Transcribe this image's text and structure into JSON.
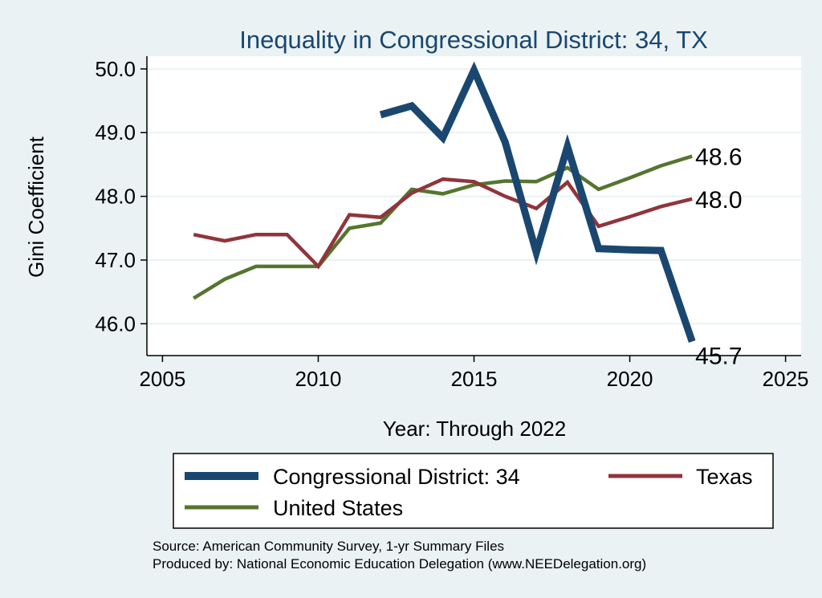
{
  "chart_data": {
    "type": "line",
    "title": "Inequality in Congressional District:  34, TX",
    "xlabel": "Year: Through 2022",
    "ylabel": "Gini Coefficient",
    "xlim": [
      2004.5,
      2025.5
    ],
    "ylim": [
      45.5,
      50.2
    ],
    "x_ticks": [
      2005,
      2010,
      2015,
      2020,
      2025
    ],
    "y_ticks": [
      46.0,
      47.0,
      48.0,
      49.0,
      50.0
    ],
    "y_tick_labels": [
      "46.0",
      "47.0",
      "48.0",
      "49.0",
      "50.0"
    ],
    "grid": true,
    "legend_position": "bottom",
    "series": [
      {
        "name": "Congressional District:  34",
        "color": "#1a476f",
        "x": [
          2012,
          2013,
          2014,
          2015,
          2016,
          2017,
          2018,
          2019,
          2020,
          2021,
          2022
        ],
        "y": [
          49.28,
          49.42,
          48.92,
          49.98,
          48.85,
          47.12,
          48.78,
          47.18,
          47.16,
          47.15,
          45.72
        ],
        "end_label": "45.7"
      },
      {
        "name": "Texas",
        "color": "#90353b",
        "x": [
          2006,
          2007,
          2008,
          2009,
          2010,
          2011,
          2012,
          2013,
          2014,
          2015,
          2016,
          2017,
          2018,
          2019,
          2020,
          2021,
          2022
        ],
        "y": [
          47.4,
          47.3,
          47.4,
          47.4,
          46.9,
          47.71,
          47.67,
          48.05,
          48.27,
          48.23,
          48.0,
          47.81,
          48.22,
          47.53,
          47.68,
          47.84,
          47.96
        ],
        "end_label": "48.0"
      },
      {
        "name": "United States",
        "color": "#55752f",
        "x": [
          2006,
          2007,
          2008,
          2009,
          2010,
          2011,
          2012,
          2013,
          2014,
          2015,
          2016,
          2017,
          2018,
          2019,
          2020,
          2021,
          2022
        ],
        "y": [
          46.4,
          46.7,
          46.9,
          46.9,
          46.9,
          47.5,
          47.58,
          48.11,
          48.04,
          48.18,
          48.24,
          48.23,
          48.45,
          48.11,
          48.29,
          48.48,
          48.63
        ],
        "end_label": "48.6"
      }
    ],
    "legend": [
      {
        "label": "Congressional District:  34",
        "series": 0
      },
      {
        "label": "Texas",
        "series": 1
      },
      {
        "label": "United States",
        "series": 2
      }
    ]
  },
  "notes": {
    "source": "Source: American Community Survey, 1-yr Summary Files",
    "produced": "Produced by: National Economic Education Delegation (www.NEEDelegation.org)"
  }
}
